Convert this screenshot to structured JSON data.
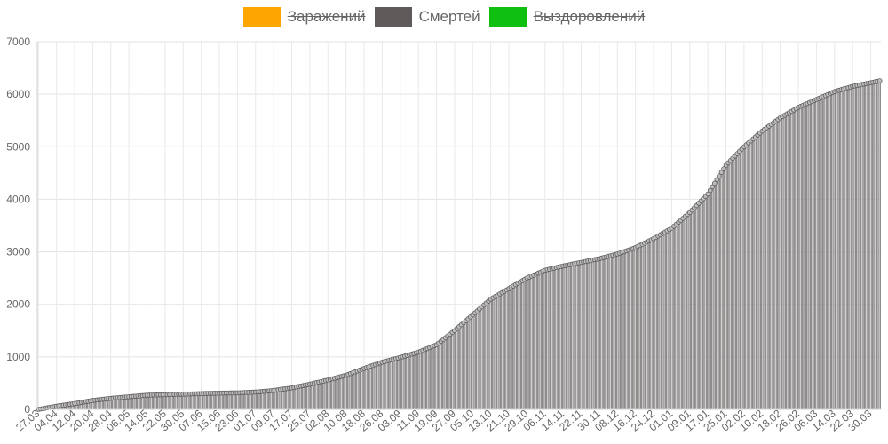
{
  "chart_data": {
    "type": "bar",
    "legend": {
      "position": "top",
      "entries": [
        {
          "name": "Заражений",
          "color": "#ffa500",
          "hidden": true
        },
        {
          "name": "Смертей",
          "color": "#5f5b5b",
          "hidden": false
        },
        {
          "name": "Выздоровлений",
          "color": "#10c010",
          "hidden": true
        }
      ]
    },
    "grid": true,
    "ylim": [
      0,
      7000
    ],
    "y_ticks": [
      0,
      1000,
      2000,
      3000,
      4000,
      5000,
      6000,
      7000
    ],
    "x_ticks": [
      "27.03",
      "04.04",
      "12.04",
      "20.04",
      "28.04",
      "06.05",
      "14.05",
      "22.05",
      "30.05",
      "07.06",
      "15.06",
      "23.06",
      "01.07",
      "09.07",
      "17.07",
      "25.07",
      "02.08",
      "10.08",
      "18.08",
      "26.08",
      "03.09",
      "11.09",
      "19.09",
      "27.09",
      "05.10",
      "13.10",
      "21.10",
      "29.10",
      "06.11",
      "14.11",
      "22.11",
      "30.11",
      "08.12",
      "16.12",
      "24.12",
      "01.01",
      "09.01",
      "17.01",
      "25.01",
      "02.02",
      "10.02",
      "18.02",
      "26.02",
      "06.03",
      "14.03",
      "22.03",
      "30.03"
    ],
    "series": [
      {
        "name": "Смертей",
        "color": "#5f5b5b",
        "values_at_ticks": [
          0,
          60,
          110,
          170,
          210,
          240,
          270,
          280,
          290,
          300,
          310,
          315,
          330,
          360,
          410,
          480,
          560,
          650,
          780,
          900,
          990,
          1090,
          1230,
          1500,
          1800,
          2100,
          2300,
          2500,
          2650,
          2730,
          2800,
          2870,
          2960,
          3080,
          3250,
          3450,
          3750,
          4100,
          4650,
          5000,
          5300,
          5550,
          5750,
          5900,
          6050,
          6150,
          6220
        ]
      }
    ]
  }
}
